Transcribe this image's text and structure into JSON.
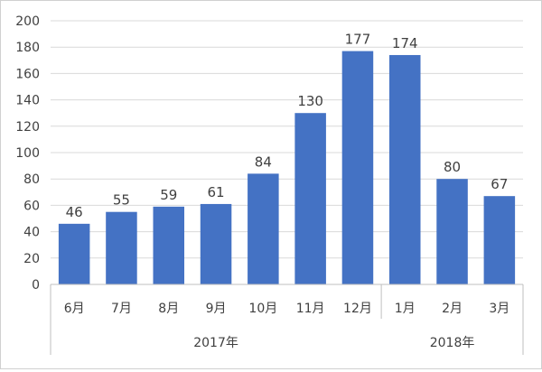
{
  "chart_data": {
    "type": "bar",
    "categories": [
      "6月",
      "7月",
      "8月",
      "9月",
      "10月",
      "11月",
      "12月",
      "1月",
      "2月",
      "3月"
    ],
    "category_groups": [
      {
        "label": "2017年",
        "categories": [
          "6月",
          "7月",
          "8月",
          "9月",
          "10月",
          "11月",
          "12月"
        ]
      },
      {
        "label": "2018年",
        "categories": [
          "1月",
          "2月",
          "3月"
        ]
      }
    ],
    "series": [
      {
        "values": [
          46,
          55,
          59,
          61,
          84,
          130,
          177,
          174,
          80,
          67
        ],
        "color": "#4472c4"
      }
    ],
    "data_labels": true,
    "ylim": [
      0,
      200
    ],
    "ytick_step": 20,
    "grid": true,
    "legend": "none"
  }
}
